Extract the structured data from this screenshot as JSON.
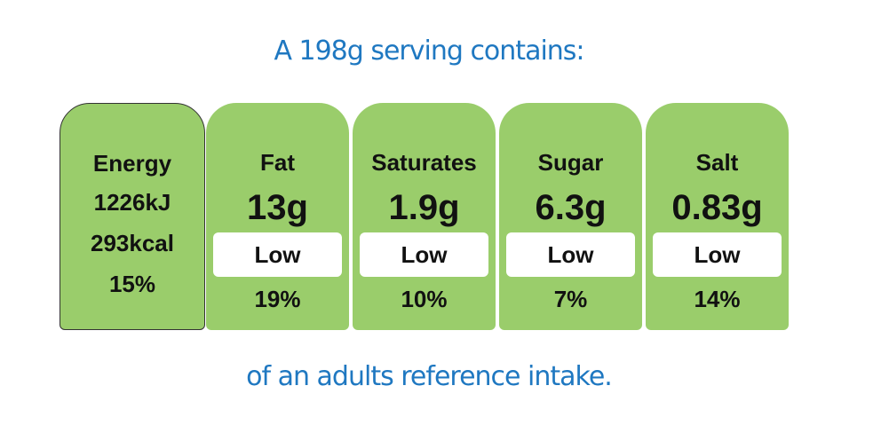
{
  "header": {
    "title": "A 198g serving contains:"
  },
  "energy": {
    "label": "Energy",
    "kj": "1226kJ",
    "kcal": "293kcal",
    "percent": "15%"
  },
  "nutrients": [
    {
      "label": "Fat",
      "amount": "13g",
      "level": "Low",
      "percent": "19%"
    },
    {
      "label": "Saturates",
      "amount": "1.9g",
      "level": "Low",
      "percent": "10%"
    },
    {
      "label": "Sugar",
      "amount": "6.3g",
      "level": "Low",
      "percent": "7%"
    },
    {
      "label": "Salt",
      "amount": "0.83g",
      "level": "Low",
      "percent": "14%"
    }
  ],
  "footer": {
    "text": "of an adults reference intake."
  }
}
